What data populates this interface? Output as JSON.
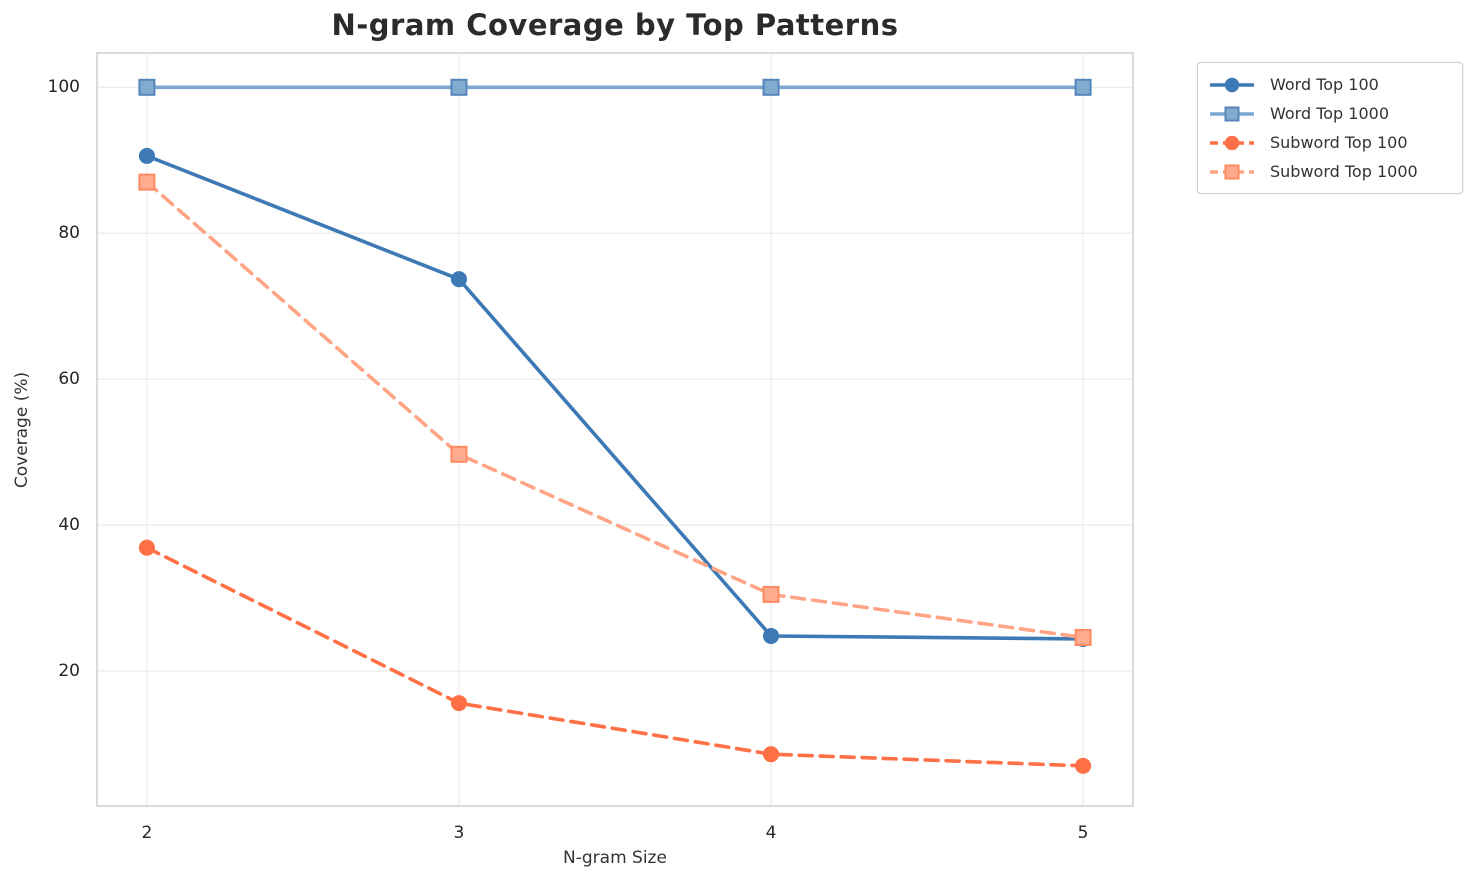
{
  "chart_data": {
    "type": "line",
    "title": "N-gram Coverage by Top Patterns",
    "xlabel": "N-gram Size",
    "ylabel": "Coverage (%)",
    "x": [
      2,
      3,
      4,
      5
    ],
    "xticks": [
      "2",
      "3",
      "4",
      "5"
    ],
    "yticks": [
      20,
      40,
      60,
      80,
      100
    ],
    "xlim": [
      1.84,
      5.16
    ],
    "ylim": [
      1.5,
      104.7
    ],
    "grid": true,
    "grid_color": "#ececec",
    "spine_color": "#d2d2d2",
    "legend_position": "outside-upper-right",
    "series": [
      {
        "id": "word-top-100",
        "name": "Word Top 100",
        "values": [
          90.6,
          73.7,
          24.8,
          24.4
        ],
        "color": "#3d7ab5",
        "line_style": "solid",
        "marker": "circle",
        "marker_fill": "#3d7ab5",
        "marker_edge": "#3d7ab5"
      },
      {
        "id": "word-top-1000",
        "name": "Word Top 1000",
        "values": [
          100,
          100,
          100,
          100
        ],
        "color": "#7ba7d0",
        "line_style": "solid",
        "marker": "square",
        "marker_fill": "#82abd2",
        "marker_edge": "#5586ba"
      },
      {
        "id": "subword-top-100",
        "name": "Subword Top 100",
        "values": [
          36.9,
          15.6,
          8.6,
          7.0
        ],
        "color": "#ff7046",
        "line_style": "dashed",
        "marker": "circle",
        "marker_fill": "#ff7046",
        "marker_edge": "#ff7046"
      },
      {
        "id": "subword-top-1000",
        "name": "Subword Top 1000",
        "values": [
          87.0,
          49.7,
          30.5,
          24.6
        ],
        "color": "#ffa586",
        "line_style": "dashed",
        "marker": "square",
        "marker_fill": "#ffab8e",
        "marker_edge": "#ff8a62"
      }
    ]
  }
}
